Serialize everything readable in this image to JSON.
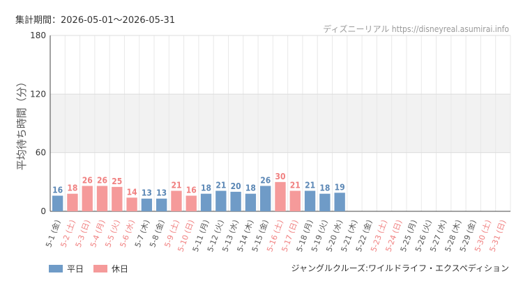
{
  "header": {
    "period": "集計期間：2026-05-01〜2026-05-31",
    "source": "ディズニーリアル https://disneyreal.asumirai.info"
  },
  "footer": {
    "attraction": "ジャングルクルーズ:ワイルドライフ・エクスペディション"
  },
  "chart_data": {
    "type": "bar",
    "ylabel": "平均待ち時間（分）",
    "ylim": [
      0,
      180
    ],
    "yticks": [
      0,
      60,
      120,
      180
    ],
    "grid": true,
    "legend_position": "bottom-left",
    "legend": [
      {
        "name": "平日",
        "color": "#6f9bc7"
      },
      {
        "name": "休日",
        "color": "#f59a9a"
      }
    ],
    "label_colors": {
      "weekday": "#555555",
      "holiday": "#f08080"
    },
    "categories": [
      "5-1 (金)",
      "5-2 (土)",
      "5-3 (日)",
      "5-4 (月)",
      "5-5 (火)",
      "5-6 (水)",
      "5-7 (木)",
      "5-8 (金)",
      "5-9 (土)",
      "5-10 (日)",
      "5-11 (月)",
      "5-12 (火)",
      "5-13 (水)",
      "5-14 (木)",
      "5-15 (金)",
      "5-16 (土)",
      "5-17 (日)",
      "5-18 (月)",
      "5-19 (火)",
      "5-20 (水)",
      "5-21 (木)",
      "5-22 (金)",
      "5-23 (土)",
      "5-24 (日)",
      "5-25 (月)",
      "5-26 (火)",
      "5-27 (水)",
      "5-28 (木)",
      "5-29 (金)",
      "5-30 (土)",
      "5-31 (日)"
    ],
    "values": [
      16,
      18,
      26,
      26,
      25,
      14,
      13,
      13,
      21,
      16,
      18,
      21,
      20,
      18,
      26,
      30,
      21,
      21,
      18,
      19,
      null,
      null,
      null,
      null,
      null,
      null,
      null,
      null,
      null,
      null,
      null
    ],
    "holiday": [
      false,
      true,
      true,
      true,
      true,
      true,
      false,
      false,
      true,
      true,
      false,
      false,
      false,
      false,
      false,
      true,
      true,
      false,
      false,
      false,
      false,
      false,
      true,
      true,
      false,
      false,
      false,
      false,
      false,
      true,
      true
    ]
  }
}
